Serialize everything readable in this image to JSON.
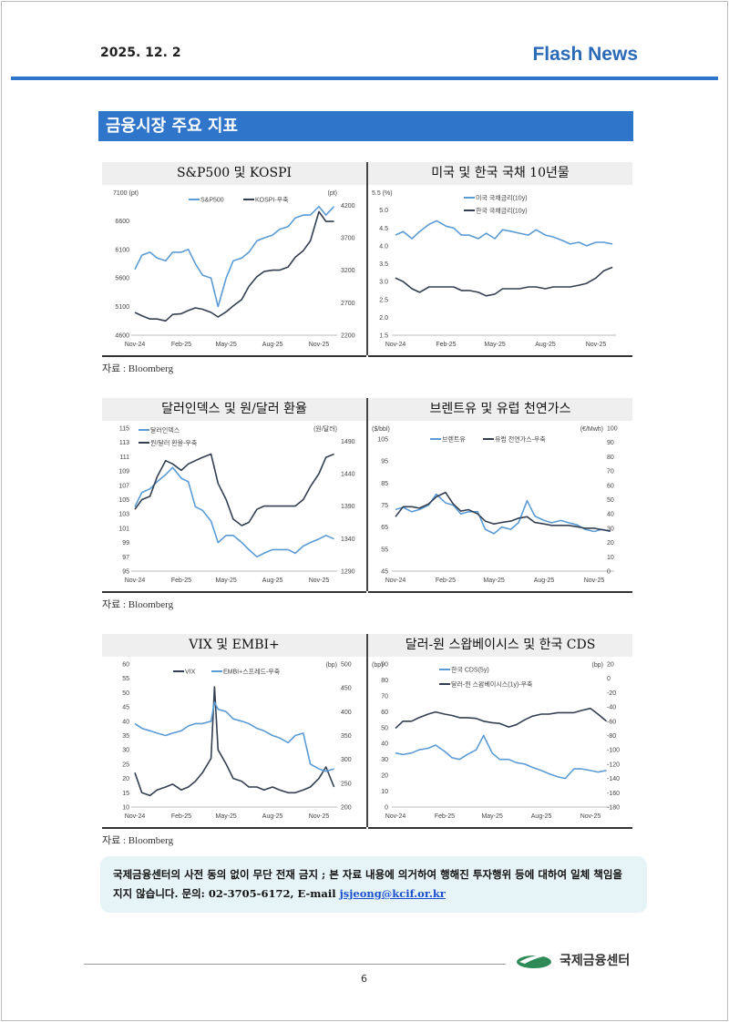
{
  "header": {
    "date": "2025. 12. 2",
    "brand": "Flash News"
  },
  "section_title": "금융시장 주요 지표",
  "source_label": "자료 : Bloomberg",
  "colors": {
    "accent": "#2f75c9",
    "light_series": "#5b9bd5",
    "dark_series": "#333f50"
  },
  "chart_data": [
    {
      "type": "line",
      "title": "S&P500 및 KOSPI",
      "left_unit": "7100 (pt)",
      "right_unit": "(pt)",
      "ylim": [
        4600,
        7100
      ],
      "yticks": [
        4600,
        5100,
        5600,
        6100,
        6600
      ],
      "y2lim": [
        2200,
        4400
      ],
      "y2ticks": [
        2200,
        2700,
        3200,
        3700,
        4200
      ],
      "xticks": [
        "Nov-24",
        "Feb-25",
        "May-25",
        "Aug-25",
        "Nov-25"
      ],
      "x": [
        "2024-11-01",
        "2024-11-15",
        "2024-12-01",
        "2024-12-15",
        "2025-01-01",
        "2025-01-15",
        "2025-02-01",
        "2025-02-15",
        "2025-03-01",
        "2025-03-15",
        "2025-04-01",
        "2025-04-15",
        "2025-05-01",
        "2025-05-15",
        "2025-06-01",
        "2025-06-15",
        "2025-07-01",
        "2025-07-15",
        "2025-08-01",
        "2025-08-15",
        "2025-09-01",
        "2025-09-15",
        "2025-10-01",
        "2025-10-15",
        "2025-11-01",
        "2025-11-15",
        "2025-12-01"
      ],
      "series": [
        {
          "name": "S&P500",
          "axis": "left",
          "color": "#5b9bd5",
          "values": [
            5750,
            6000,
            6050,
            5950,
            5900,
            6050,
            6050,
            6100,
            5850,
            5650,
            5600,
            5100,
            5600,
            5900,
            5950,
            6050,
            6250,
            6300,
            6350,
            6450,
            6500,
            6650,
            6700,
            6700,
            6850,
            6700,
            6850
          ]
        },
        {
          "name": "KOSPI-우축",
          "axis": "right",
          "color": "#333f50",
          "values": [
            2550,
            2500,
            2450,
            2450,
            2420,
            2520,
            2530,
            2580,
            2620,
            2600,
            2550,
            2480,
            2560,
            2650,
            2750,
            2950,
            3100,
            3180,
            3200,
            3200,
            3250,
            3400,
            3500,
            3650,
            4100,
            3950,
            3950
          ]
        }
      ]
    },
    {
      "type": "line",
      "title": "미국 및 한국 국채 10년물",
      "left_unit": "5.5   (%)",
      "ylim": [
        1.5,
        5.5
      ],
      "yticks": [
        1.5,
        2.0,
        2.5,
        3.0,
        3.5,
        4.0,
        4.5,
        5.0
      ],
      "xticks": [
        "Nov-24",
        "Feb-25",
        "May-25",
        "Aug-25",
        "Nov-25"
      ],
      "x": [
        "2024-11-01",
        "2024-11-15",
        "2024-12-01",
        "2024-12-15",
        "2025-01-01",
        "2025-01-15",
        "2025-02-01",
        "2025-02-15",
        "2025-03-01",
        "2025-03-15",
        "2025-04-01",
        "2025-04-15",
        "2025-05-01",
        "2025-05-15",
        "2025-06-01",
        "2025-06-15",
        "2025-07-01",
        "2025-07-15",
        "2025-08-01",
        "2025-08-15",
        "2025-09-01",
        "2025-09-15",
        "2025-10-01",
        "2025-10-15",
        "2025-11-01",
        "2025-11-15",
        "2025-12-01"
      ],
      "series": [
        {
          "name": "미국 국채금리(10y)",
          "axis": "left",
          "color": "#5b9bd5",
          "values": [
            4.3,
            4.4,
            4.2,
            4.4,
            4.6,
            4.7,
            4.55,
            4.5,
            4.3,
            4.3,
            4.2,
            4.35,
            4.2,
            4.45,
            4.4,
            4.35,
            4.3,
            4.45,
            4.3,
            4.25,
            4.15,
            4.05,
            4.1,
            4.0,
            4.1,
            4.1,
            4.05
          ]
        },
        {
          "name": "한국 국채금리(10y)",
          "axis": "left",
          "color": "#333f50",
          "values": [
            3.1,
            3.0,
            2.8,
            2.7,
            2.85,
            2.85,
            2.85,
            2.85,
            2.75,
            2.75,
            2.7,
            2.6,
            2.65,
            2.8,
            2.8,
            2.8,
            2.85,
            2.85,
            2.8,
            2.85,
            2.85,
            2.85,
            2.9,
            2.95,
            3.1,
            3.3,
            3.4
          ]
        }
      ]
    },
    {
      "type": "line",
      "title": "달러인덱스 및 원/달러 환율",
      "right_unit": "(원/달러)",
      "ylim": [
        95,
        115
      ],
      "yticks": [
        95,
        97,
        99,
        101,
        103,
        105,
        107,
        109,
        111,
        113,
        115
      ],
      "y2lim": [
        1290,
        1510
      ],
      "y2ticks": [
        1290,
        1340,
        1390,
        1440,
        1490
      ],
      "xticks": [
        "Nov-24",
        "Feb-25",
        "May-25",
        "Aug-25",
        "Nov-25"
      ],
      "x": [
        "2024-11-01",
        "2024-11-15",
        "2024-12-01",
        "2024-12-15",
        "2025-01-01",
        "2025-01-15",
        "2025-02-01",
        "2025-02-15",
        "2025-03-01",
        "2025-03-15",
        "2025-04-01",
        "2025-04-15",
        "2025-05-01",
        "2025-05-15",
        "2025-06-01",
        "2025-06-15",
        "2025-07-01",
        "2025-07-15",
        "2025-08-01",
        "2025-08-15",
        "2025-09-01",
        "2025-09-15",
        "2025-10-01",
        "2025-10-15",
        "2025-11-01",
        "2025-11-15",
        "2025-12-01"
      ],
      "series": [
        {
          "name": "달러인덱스",
          "axis": "left",
          "color": "#5b9bd5",
          "values": [
            104,
            106,
            106.5,
            107.5,
            108.5,
            109.5,
            108,
            107.5,
            104,
            103.5,
            102,
            99,
            100,
            100,
            99,
            98,
            97,
            97.5,
            98,
            98,
            98,
            97.5,
            98.5,
            99,
            99.5,
            100,
            99.5
          ]
        },
        {
          "name": "원/달러 환율-우축",
          "axis": "right",
          "color": "#333f50",
          "values": [
            1385,
            1400,
            1405,
            1435,
            1460,
            1455,
            1445,
            1455,
            1460,
            1465,
            1470,
            1425,
            1400,
            1370,
            1360,
            1365,
            1385,
            1390,
            1390,
            1390,
            1390,
            1390,
            1400,
            1420,
            1440,
            1465,
            1470
          ]
        }
      ]
    },
    {
      "type": "line",
      "title": "브렌트유 및 유럽 천연가스",
      "left_unit": "($/bbl)",
      "right_unit": "(€/Mwh)",
      "ylim": [
        45,
        110
      ],
      "yticks": [
        45,
        55,
        65,
        75,
        85,
        95,
        105
      ],
      "y2lim": [
        0,
        100
      ],
      "y2ticks": [
        0,
        10,
        20,
        30,
        40,
        50,
        60,
        70,
        80,
        90,
        100
      ],
      "xticks": [
        "Nov-24",
        "Feb-25",
        "May-25",
        "Aug-25",
        "Nov-25"
      ],
      "x": [
        "2024-11-01",
        "2024-11-15",
        "2024-12-01",
        "2024-12-15",
        "2025-01-01",
        "2025-01-15",
        "2025-02-01",
        "2025-02-15",
        "2025-03-01",
        "2025-03-15",
        "2025-04-01",
        "2025-04-15",
        "2025-05-01",
        "2025-05-15",
        "2025-06-01",
        "2025-06-15",
        "2025-07-01",
        "2025-07-15",
        "2025-08-01",
        "2025-08-15",
        "2025-09-01",
        "2025-09-15",
        "2025-10-01",
        "2025-10-15",
        "2025-11-01",
        "2025-11-15",
        "2025-12-01"
      ],
      "series": [
        {
          "name": "브렌트유",
          "axis": "left",
          "color": "#5b9bd5",
          "values": [
            73,
            74,
            72,
            73,
            75,
            80,
            76,
            75,
            71,
            72,
            72,
            64,
            62,
            65,
            64,
            67,
            77,
            70,
            68,
            67,
            68,
            67,
            66,
            64,
            63,
            64,
            63
          ]
        },
        {
          "name": "유럽 천연가스-우축",
          "axis": "right",
          "color": "#333f50",
          "values": [
            38,
            45,
            45,
            44,
            47,
            52,
            55,
            47,
            42,
            43,
            40,
            35,
            33,
            34,
            35,
            37,
            38,
            34,
            33,
            32,
            32,
            32,
            31,
            30,
            30,
            29,
            28
          ]
        }
      ]
    },
    {
      "type": "line",
      "title": "VIX 및 EMBI+",
      "right_unit": "(bp)",
      "ylim": [
        10,
        60
      ],
      "yticks": [
        10,
        15,
        20,
        25,
        30,
        35,
        40,
        45,
        50,
        55,
        60
      ],
      "y2lim": [
        200,
        500
      ],
      "y2ticks": [
        200,
        250,
        300,
        350,
        400,
        450,
        500
      ],
      "xticks": [
        "Nov-24",
        "Feb-25",
        "May-25",
        "Aug-25",
        "Nov-25"
      ],
      "x": [
        "2024-11-01",
        "2024-11-15",
        "2024-12-01",
        "2024-12-15",
        "2025-01-01",
        "2025-01-15",
        "2025-02-01",
        "2025-02-15",
        "2025-03-01",
        "2025-03-15",
        "2025-04-01",
        "2025-04-08",
        "2025-04-15",
        "2025-05-01",
        "2025-05-15",
        "2025-06-01",
        "2025-06-15",
        "2025-07-01",
        "2025-07-15",
        "2025-08-01",
        "2025-08-15",
        "2025-09-01",
        "2025-09-15",
        "2025-10-01",
        "2025-10-15",
        "2025-11-01",
        "2025-11-15",
        "2025-12-01"
      ],
      "series": [
        {
          "name": "VIX",
          "axis": "left",
          "color": "#333f50",
          "values": [
            22,
            15,
            14,
            16,
            17,
            18,
            16,
            17,
            19,
            22,
            27,
            52,
            30,
            25,
            20,
            19,
            17,
            17,
            16,
            17,
            16,
            15,
            15,
            16,
            17,
            20,
            24,
            17
          ]
        },
        {
          "name": "EMBI+스프레드-우축",
          "axis": "right",
          "color": "#5b9bd5",
          "values": [
            375,
            365,
            360,
            355,
            350,
            355,
            360,
            370,
            375,
            375,
            380,
            420,
            405,
            400,
            385,
            380,
            375,
            365,
            360,
            350,
            345,
            335,
            350,
            355,
            290,
            280,
            275,
            280
          ]
        }
      ]
    },
    {
      "type": "line",
      "title": "달러-원 스왑베이시스 및 한국 CDS",
      "left_unit": "(bp)",
      "right_unit": "(bp)",
      "ylim": [
        0,
        90
      ],
      "yticks": [
        0,
        10,
        20,
        30,
        40,
        50,
        60,
        70,
        80,
        90
      ],
      "y2lim": [
        -180,
        20
      ],
      "y2ticks": [
        -180,
        -160,
        -140,
        -120,
        -100,
        -80,
        -60,
        -40,
        -20,
        0,
        20
      ],
      "xticks": [
        "Nov-24",
        "Feb-25",
        "May-25",
        "Aug-25",
        "Nov-25"
      ],
      "x": [
        "2024-11-01",
        "2024-11-15",
        "2024-12-01",
        "2024-12-15",
        "2025-01-01",
        "2025-01-15",
        "2025-02-01",
        "2025-02-15",
        "2025-03-01",
        "2025-03-15",
        "2025-04-01",
        "2025-04-15",
        "2025-05-01",
        "2025-05-15",
        "2025-06-01",
        "2025-06-15",
        "2025-07-01",
        "2025-07-15",
        "2025-08-01",
        "2025-08-15",
        "2025-09-01",
        "2025-09-15",
        "2025-10-01",
        "2025-10-15",
        "2025-11-01",
        "2025-11-15",
        "2025-12-01"
      ],
      "series": [
        {
          "name": "한국 CDS(5y)",
          "axis": "left",
          "color": "#5b9bd5",
          "values": [
            34,
            33,
            34,
            36,
            37,
            39,
            35,
            31,
            30,
            33,
            36,
            45,
            34,
            30,
            30,
            28,
            27,
            25,
            23,
            21,
            19,
            18,
            24,
            24,
            23,
            22,
            23
          ]
        },
        {
          "name": "달러-원 스왑베이시스(1y)-우축",
          "axis": "right",
          "color": "#333f50",
          "values": [
            -70,
            -60,
            -60,
            -55,
            -50,
            -47,
            -50,
            -52,
            -55,
            -55,
            -56,
            -60,
            -62,
            -63,
            -68,
            -65,
            -58,
            -53,
            -50,
            -50,
            -48,
            -48,
            -48,
            -45,
            -42,
            -50,
            -60
          ]
        }
      ]
    }
  ],
  "notice": {
    "text": "국제금융센터의 사전 동의 없이 무단 전재 금지 ; 본 자료 내용에 의거하여 행해진 투자행위 등에 대하여 일체 책임을 지지 않습니다. 문의: 02-3705-6172, E-mail ",
    "email": "jsjeong@kcif.or.kr"
  },
  "footer": {
    "logo_text": "국제금융센터",
    "page": "6"
  }
}
